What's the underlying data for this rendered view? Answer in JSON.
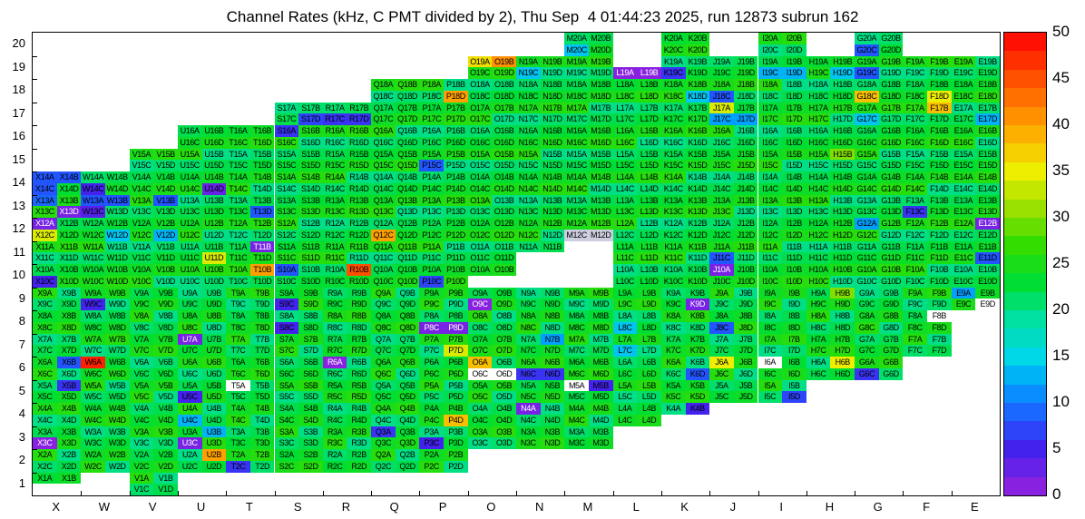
{
  "chart_data": {
    "type": "heatmap",
    "title": "Channel Rates (kHz, C PMT divided by 2), Thu Sep  4 01:44:23 2025, run 12873 subrun 162",
    "value_unit": "kHz",
    "scale_min": 0,
    "scale_max": 50,
    "colorbar_ticks": [
      0,
      5,
      10,
      15,
      20,
      25,
      30,
      35,
      40,
      45,
      50
    ],
    "columns": [
      "X",
      "W",
      "V",
      "U",
      "T",
      "S",
      "R",
      "Q",
      "P",
      "O",
      "N",
      "M",
      "L",
      "K",
      "J",
      "I",
      "H",
      "G",
      "F",
      "E"
    ],
    "y_tick_labels": [
      "1",
      "2",
      "3",
      "4",
      "5",
      "6",
      "7",
      "8",
      "9",
      "10",
      "11",
      "12",
      "13",
      "14",
      "15",
      "16",
      "17",
      "18",
      "19",
      "20"
    ],
    "suffixes": [
      "A",
      "B",
      "C",
      "D"
    ],
    "default_value": 23,
    "palette_stops": [
      [
        0,
        "#9922dd"
      ],
      [
        5,
        "#4422ee"
      ],
      [
        8,
        "#2255ff"
      ],
      [
        12,
        "#00a0ff"
      ],
      [
        15,
        "#00d8e8"
      ],
      [
        19,
        "#00e0a0"
      ],
      [
        23,
        "#00dd33"
      ],
      [
        27,
        "#33dd00"
      ],
      [
        31,
        "#99e000"
      ],
      [
        35,
        "#eeee00"
      ],
      [
        40,
        "#ffa000"
      ],
      [
        45,
        "#ff5000"
      ],
      [
        50,
        "#ff0000"
      ]
    ],
    "row_blocks": {
      "1": {
        "list": [
          "X",
          "V"
        ]
      },
      "2": {
        "from": "X",
        "to": "P"
      },
      "3": {
        "from": "X",
        "to": "M"
      },
      "4": {
        "from": "X",
        "to": "K"
      },
      "5": {
        "from": "X",
        "to": "I"
      },
      "6": {
        "from": "X",
        "to": "G"
      },
      "7": {
        "from": "X",
        "to": "F"
      },
      "8": {
        "from": "X",
        "to": "F"
      },
      "9": {
        "from": "X",
        "to": "E"
      },
      "10": {
        "from": "X",
        "to": "E"
      },
      "11": {
        "from": "X",
        "to": "E"
      },
      "12": {
        "from": "X",
        "to": "E"
      },
      "13": {
        "from": "X",
        "to": "E"
      },
      "14": {
        "from": "X",
        "to": "E"
      },
      "15": {
        "from": "V",
        "to": "E"
      },
      "16": {
        "from": "U",
        "to": "E"
      },
      "17": {
        "from": "S",
        "to": "E"
      },
      "18": {
        "from": "Q",
        "to": "E"
      },
      "19": {
        "from": "O",
        "to": "E"
      },
      "20": {
        "list": [
          "M",
          "K",
          "I",
          "G"
        ]
      }
    },
    "half_blocks": {
      "L19": "bottom",
      "K4": "top",
      "X1": "top"
    },
    "missing_cells": [
      "O10C",
      "O10D",
      "N10A",
      "N10B",
      "N10C",
      "N10D",
      "M10A",
      "M10B",
      "M10C",
      "M10D",
      "M11A",
      "M11B",
      "M11C",
      "M11D",
      "N11C",
      "N11D"
    ],
    "white_cells": [
      "O6C",
      "O6D",
      "I6A",
      "T5A",
      "M5A",
      "F8B",
      "E9D"
    ],
    "special_colors": {
      "M12C": "#cdcde0",
      "M12D": "#cdcde0"
    },
    "cell_values": {
      "M20C": 14,
      "G20C": 8,
      "O19A": 36,
      "O19B": 41,
      "N19C": 14,
      "L19A": 1,
      "L19B": 1,
      "K19C": 6,
      "I19C": 13,
      "I19D": 13,
      "H19D": 14,
      "G19C": 8,
      "P18D": 40,
      "K18D": 14,
      "J18C": 8,
      "G18C": 38,
      "F18D": 35,
      "S17D": 7,
      "R17C": 6,
      "R17D": 6,
      "J17A": 34,
      "J17C": 12,
      "J17D": 12,
      "G17C": 14,
      "F17B": 38,
      "E17D": 13,
      "S16A": 6,
      "P15C": 8,
      "H15B": 30,
      "X14A": 8,
      "X14B": 8,
      "X14C": 8,
      "W14C": 5,
      "U14D": 3,
      "X13A": 9,
      "X13D": 2,
      "W13A": 8,
      "W13B": 8,
      "W13C": 4,
      "V13B": 8,
      "T13D": 8,
      "F13C": 6,
      "X12A": 2,
      "X12C": 34,
      "W12D": 14,
      "V12D": 13,
      "Q12C": 40,
      "G12A": 12,
      "E12B": 2,
      "U11D": 34,
      "T11B": 2,
      "J11C": 8,
      "E11D": 8,
      "X10C": 5,
      "T10B": 40,
      "S10A": 8,
      "R10B": 45,
      "P10C": 7,
      "J10A": 2,
      "W9C": 5,
      "S9C": 5,
      "O9C": 1,
      "K9D": 2,
      "H9B": 30,
      "E9A": 12,
      "S8C": 5,
      "P8C": 2,
      "P8D": 2,
      "L8C": 14,
      "J8C": 8,
      "U7A": 2,
      "P7D": 34,
      "N7B": 12,
      "L7C": 14,
      "X6B": 8,
      "W6A": 48,
      "R6A": 1,
      "O6A": 38,
      "N6C": 6,
      "N6D": 6,
      "K6D": 8,
      "J6A": 35,
      "H6B": 35,
      "G6C": 6,
      "X5B": 6,
      "U5C": 5,
      "M5B": 5,
      "I5D": 7,
      "U4C": 13,
      "P4D": 38,
      "N4A": 2,
      "K4B": 5,
      "X3C": 1,
      "U3B": 13,
      "U3C": 2,
      "Q3A": 6,
      "P3C": 5,
      "U2B": 40,
      "T2C": 6
    }
  }
}
